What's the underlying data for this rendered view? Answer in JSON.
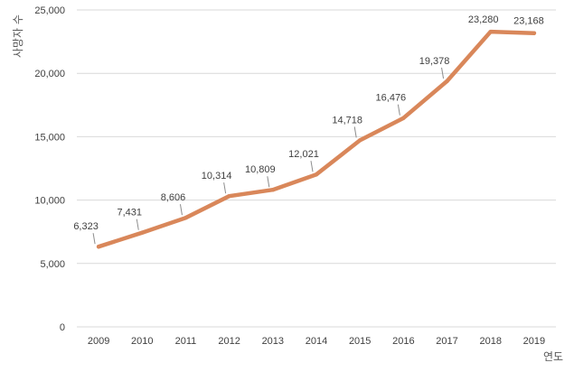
{
  "chart_data": {
    "type": "line",
    "title": "",
    "xlabel": "연도",
    "ylabel": "사망자 수",
    "categories": [
      "2009",
      "2010",
      "2011",
      "2012",
      "2013",
      "2014",
      "2015",
      "2016",
      "2017",
      "2018",
      "2019"
    ],
    "series": [
      {
        "values": [
          6323,
          7431,
          8606,
          10314,
          10809,
          12021,
          14718,
          16476,
          19378,
          23280,
          23168
        ],
        "data_labels": [
          "6,323",
          "7,431",
          "8,606",
          "10,314",
          "10,809",
          "12,021",
          "14,718",
          "16,476",
          "19,378",
          "23,280",
          "23,168"
        ],
        "color": "#d9875a"
      }
    ],
    "ylim": [
      0,
      25000
    ],
    "yticks": [
      0,
      5000,
      10000,
      15000,
      20000,
      25000
    ],
    "ytick_labels": [
      "0",
      "5,000",
      "10,000",
      "15,000",
      "20,000",
      "25,000"
    ],
    "grid": true,
    "legend": "none"
  }
}
